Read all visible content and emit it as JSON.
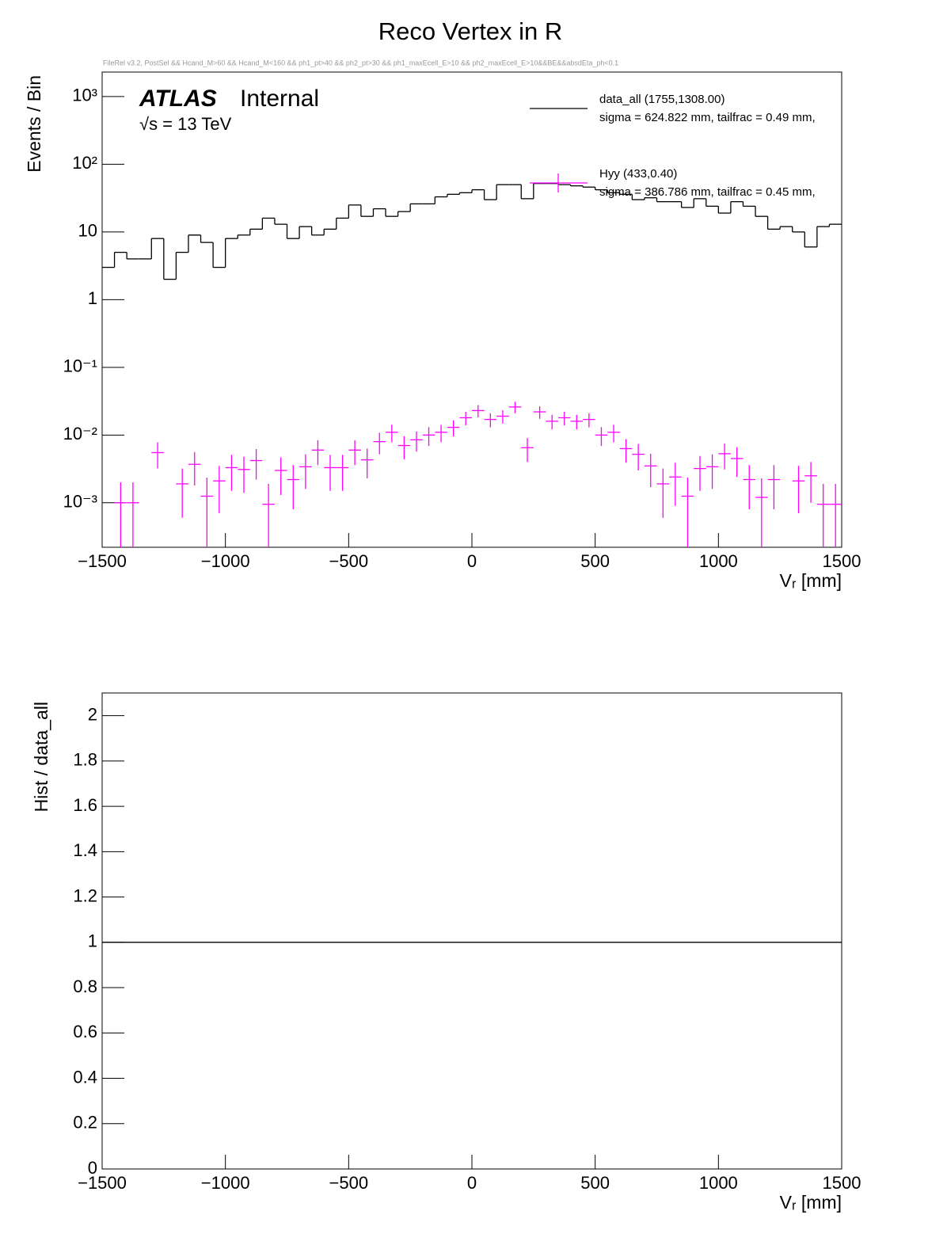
{
  "title": "Reco Vertex in R",
  "subtitle": "FileRel v3.2, PostSel && Hcand_M>60 && Hcand_M<160 && ph1_pt>40 && ph2_pt>30 && ph1_maxEcell_E>10 && ph2_maxEcell_E>10&&BE&&absdEta_ph<0.1",
  "atlas_label": "ATLAS",
  "atlas_status": "Internal",
  "energy_label": "√s = 13 TeV",
  "chart_data": [
    {
      "type": "histogram",
      "log_y": true,
      "legend": "top right",
      "xlabel": "Vᵣ [mm]",
      "ylabel": "Events / Bin",
      "xlim": [
        -1500,
        1500
      ],
      "xticks": [
        {
          "value": -1500,
          "label": "−1500"
        },
        {
          "value": -1000,
          "label": "−1000"
        },
        {
          "value": -500,
          "label": "−500"
        },
        0,
        500,
        1000,
        1500
      ],
      "ylim": [
        0.00022,
        2300
      ],
      "yticks": [
        {
          "value": 0.001,
          "label": "10⁻³"
        },
        {
          "value": 0.01,
          "label": "10⁻²"
        },
        {
          "value": 0.1,
          "label": "10⁻¹"
        },
        1,
        10,
        {
          "value": 100,
          "label": "10²"
        },
        {
          "value": 1000,
          "label": "10³"
        }
      ],
      "bins": [
        -1500,
        -1450,
        -1400,
        -1350,
        -1300,
        -1250,
        -1200,
        -1150,
        -1100,
        -1050,
        -1000,
        -950,
        -900,
        -850,
        -800,
        -750,
        -700,
        -650,
        -600,
        -550,
        -500,
        -450,
        -400,
        -350,
        -300,
        -250,
        -200,
        -150,
        -100,
        -50,
        0,
        50,
        100,
        150,
        200,
        250,
        300,
        350,
        400,
        450,
        500,
        550,
        600,
        650,
        700,
        750,
        800,
        850,
        900,
        950,
        1000,
        1050,
        1100,
        1150,
        1200,
        1250,
        1300,
        1350,
        1400,
        1450,
        1500
      ],
      "series": [
        {
          "name": "data_all  (1755,1308.00)",
          "legend_detail": "sigma = 624.822 mm, tailfrac = 0.49 mm,",
          "style": "step",
          "color": "#000000",
          "values": [
            3,
            5,
            4,
            4,
            8,
            2,
            5,
            9,
            7,
            3,
            8,
            9,
            11,
            16,
            13,
            8,
            12,
            9,
            11,
            16,
            25,
            17,
            22,
            17,
            20,
            26,
            26,
            33,
            36,
            38,
            42,
            30,
            50,
            50,
            31,
            52,
            52,
            50,
            48,
            46,
            42,
            38,
            36,
            30,
            32,
            28,
            28,
            23,
            31,
            24,
            19,
            28,
            24,
            17,
            11,
            12,
            10,
            6,
            12,
            13
          ]
        },
        {
          "name": "Hyy  (433,0.40)",
          "legend_detail": "sigma = 386.786 mm, tailfrac = 0.45 mm,",
          "style": "errorbar",
          "color": "#ff00ff",
          "values": [
            null,
            0.001,
            0.001,
            null,
            0.0055,
            null,
            0.0019,
            0.0037,
            0.00125,
            0.0021,
            0.0033,
            0.0031,
            0.0042,
            0.00095,
            0.003,
            0.0022,
            0.0034,
            0.006,
            0.0033,
            0.0033,
            0.006,
            0.0043,
            0.008,
            0.011,
            0.007,
            0.0085,
            0.01,
            0.011,
            0.013,
            0.018,
            0.023,
            0.017,
            0.019,
            0.026,
            0.0065,
            0.022,
            0.016,
            0.018,
            0.016,
            0.017,
            0.01,
            0.011,
            0.0063,
            0.0052,
            0.0035,
            0.0019,
            0.0024,
            0.00125,
            0.0032,
            0.0034,
            0.0053,
            0.0045,
            0.0022,
            0.0012,
            0.0022,
            null,
            0.0021,
            0.0025,
            0.00095,
            0.00095
          ],
          "errors": [
            null,
            0.001,
            0.001,
            null,
            0.0023,
            null,
            0.0013,
            0.0019,
            0.0011,
            0.0014,
            0.0018,
            0.0017,
            0.002,
            0.00095,
            0.0017,
            0.0014,
            0.0018,
            0.0024,
            0.0018,
            0.0018,
            0.0024,
            0.002,
            0.0028,
            0.0032,
            0.0026,
            0.0028,
            0.0031,
            0.0032,
            0.0035,
            0.0041,
            0.0047,
            0.004,
            0.0042,
            0.005,
            0.0025,
            0.0046,
            0.0039,
            0.0041,
            0.0039,
            0.004,
            0.0031,
            0.0032,
            0.0024,
            0.0022,
            0.0018,
            0.0013,
            0.0015,
            0.0011,
            0.0017,
            0.0018,
            0.0022,
            0.0021,
            0.0014,
            0.0011,
            0.0014,
            null,
            0.0014,
            0.0015,
            0.00095,
            0.00095
          ]
        }
      ]
    },
    {
      "type": "ratio",
      "xlabel": "Vᵣ [mm]",
      "ylabel": "Hist / data_all",
      "xlim": [
        -1500,
        1500
      ],
      "xticks": [
        {
          "value": -1500,
          "label": "−1500"
        },
        {
          "value": -1000,
          "label": "−1000"
        },
        {
          "value": -500,
          "label": "−500"
        },
        0,
        500,
        1000,
        1500
      ],
      "ylim": [
        0,
        2.1
      ],
      "yticks": [
        0,
        0.2,
        0.4,
        0.6,
        0.8,
        1,
        1.2,
        1.4,
        1.6,
        1.8,
        2
      ],
      "hline": 1,
      "color": "#000000"
    }
  ]
}
